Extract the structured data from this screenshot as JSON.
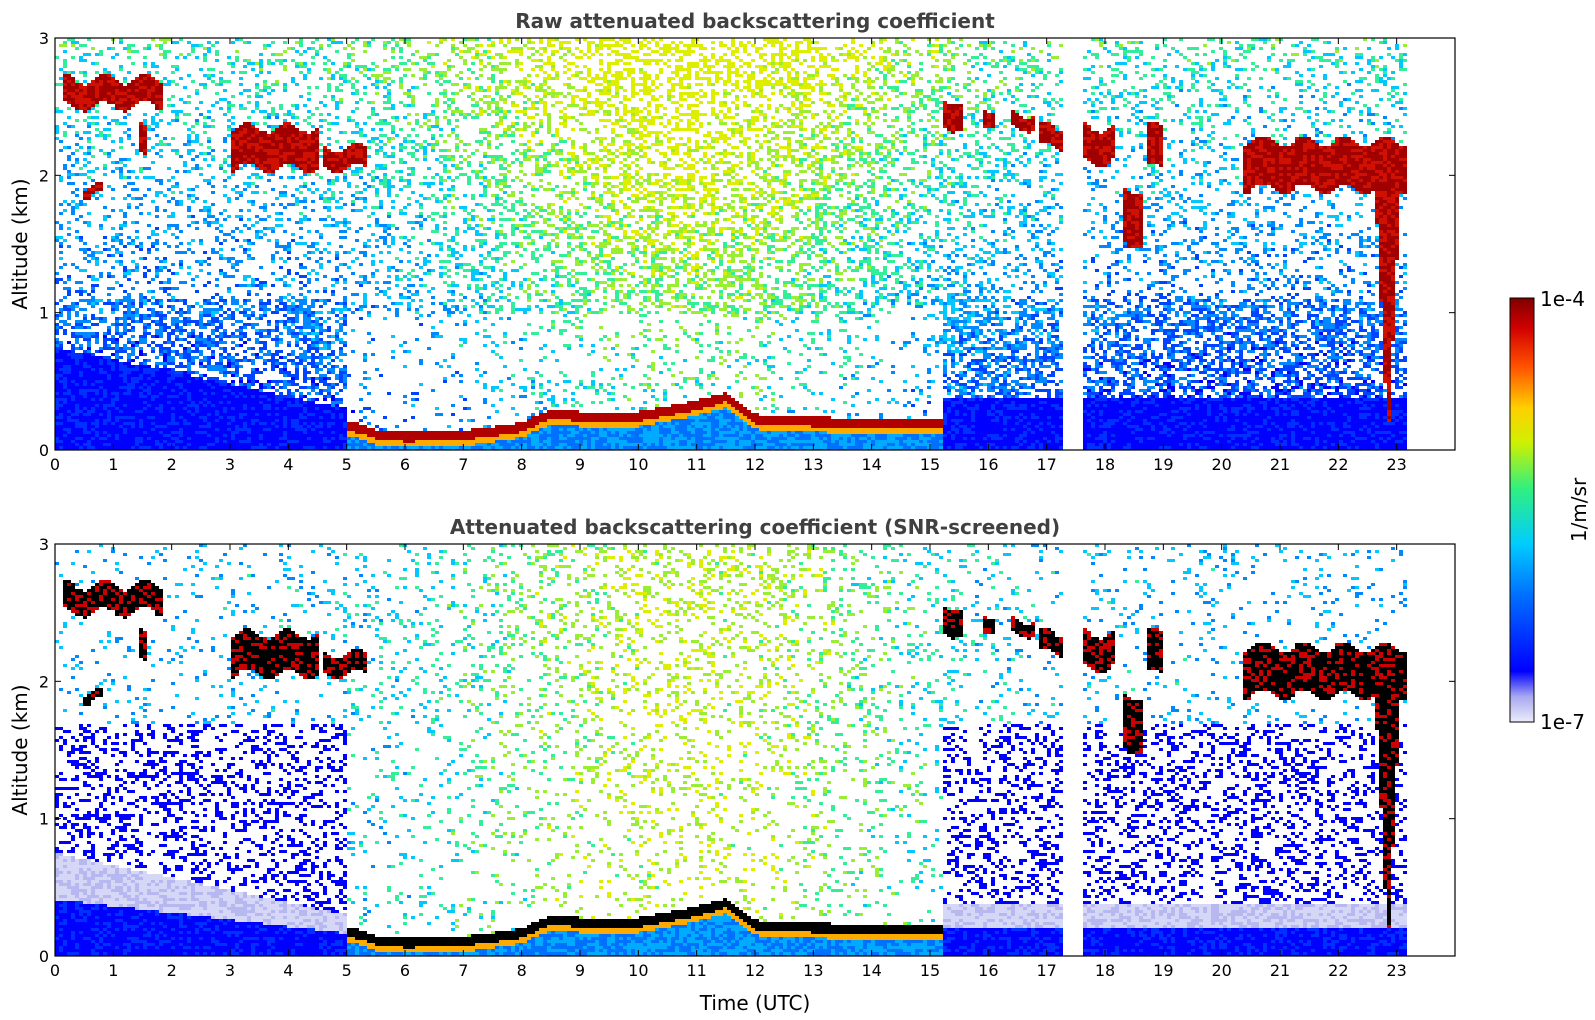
{
  "chart_data": [
    {
      "type": "heatmap",
      "title": "Raw attenuated backscattering coefficient",
      "xlabel": "",
      "ylabel": "Altitude (km)",
      "xlim": [
        0,
        24
      ],
      "ylim": [
        0,
        3
      ],
      "x_ticks": [
        "0",
        "1",
        "2",
        "3",
        "4",
        "5",
        "6",
        "7",
        "8",
        "9",
        "10",
        "11",
        "12",
        "13",
        "14",
        "15",
        "16",
        "17",
        "18",
        "19",
        "20",
        "21",
        "22",
        "23"
      ],
      "y_ticks": [
        "0",
        "1",
        "2",
        "3"
      ],
      "data_gaps_utc": [
        [
          17.3,
          17.6
        ],
        [
          23.15,
          24
        ]
      ],
      "features": {
        "cloud_layers": [
          {
            "start": 0.15,
            "end": 1.85,
            "top": 2.7,
            "base": 2.5
          },
          {
            "start": 1.45,
            "end": 1.6,
            "top": 2.35,
            "base": 2.15
          },
          {
            "start": 0.45,
            "end": 0.8,
            "top": 1.92,
            "base": 1.85
          },
          {
            "start": 3.0,
            "end": 4.5,
            "top": 2.35,
            "base": 2.05
          },
          {
            "start": 4.6,
            "end": 5.35,
            "top": 2.2,
            "base": 2.05
          },
          {
            "start": 15.2,
            "end": 15.6,
            "top": 2.55,
            "base": 2.35
          },
          {
            "start": 15.9,
            "end": 16.1,
            "top": 2.5,
            "base": 2.38
          },
          {
            "start": 16.4,
            "end": 16.8,
            "top": 2.45,
            "base": 2.35
          },
          {
            "start": 16.9,
            "end": 17.3,
            "top": 2.35,
            "base": 2.2
          },
          {
            "start": 17.6,
            "end": 18.2,
            "top": 2.35,
            "base": 2.1
          },
          {
            "start": 18.3,
            "end": 18.65,
            "top": 1.9,
            "base": 1.5
          },
          {
            "start": 18.7,
            "end": 19.0,
            "top": 2.35,
            "base": 2.05
          },
          {
            "start": 20.4,
            "end": 23.15,
            "top": 2.25,
            "base": 1.9
          }
        ],
        "boundary_layer": [
          {
            "t": 5.0,
            "top": 0.22
          },
          {
            "t": 5.5,
            "top": 0.15
          },
          {
            "t": 6.0,
            "top": 0.13
          },
          {
            "t": 7.0,
            "top": 0.14
          },
          {
            "t": 8.0,
            "top": 0.2
          },
          {
            "t": 8.5,
            "top": 0.3
          },
          {
            "t": 9.0,
            "top": 0.28
          },
          {
            "t": 10.0,
            "top": 0.28
          },
          {
            "t": 11.0,
            "top": 0.36
          },
          {
            "t": 11.5,
            "top": 0.42
          },
          {
            "t": 12.0,
            "top": 0.26
          },
          {
            "t": 13.0,
            "top": 0.24
          },
          {
            "t": 14.0,
            "top": 0.23
          },
          {
            "t": 15.2,
            "top": 0.22
          }
        ],
        "virga_fall": {
          "start": 22.6,
          "end": 23.1,
          "top": 2.0,
          "base": 0.05
        }
      }
    },
    {
      "type": "heatmap",
      "title": "Attenuated backscattering coefficient (SNR-screened)",
      "xlabel": "Time (UTC)",
      "ylabel": "Altitude (km)",
      "xlim": [
        0,
        24
      ],
      "ylim": [
        0,
        3
      ],
      "x_ticks": [
        "0",
        "1",
        "2",
        "3",
        "4",
        "5",
        "6",
        "7",
        "8",
        "9",
        "10",
        "11",
        "12",
        "13",
        "14",
        "15",
        "16",
        "17",
        "18",
        "19",
        "20",
        "21",
        "22",
        "23"
      ],
      "y_ticks": [
        "0",
        "1",
        "2",
        "3"
      ],
      "data_gaps_utc": [
        [
          17.3,
          17.6
        ],
        [
          23.15,
          24
        ]
      ]
    }
  ],
  "colorbar": {
    "label": "1/m/sr",
    "max_label": "1e-4",
    "min_label": "1e-7",
    "scale": "log",
    "range": [
      1e-07,
      0.0001
    ],
    "colormap": [
      "#e8e8f8",
      "#b0b0f0",
      "#0000ff",
      "#0066ff",
      "#00ccff",
      "#22ee88",
      "#ccee00",
      "#ffcc00",
      "#ff6600",
      "#cc0000",
      "#800000"
    ]
  }
}
